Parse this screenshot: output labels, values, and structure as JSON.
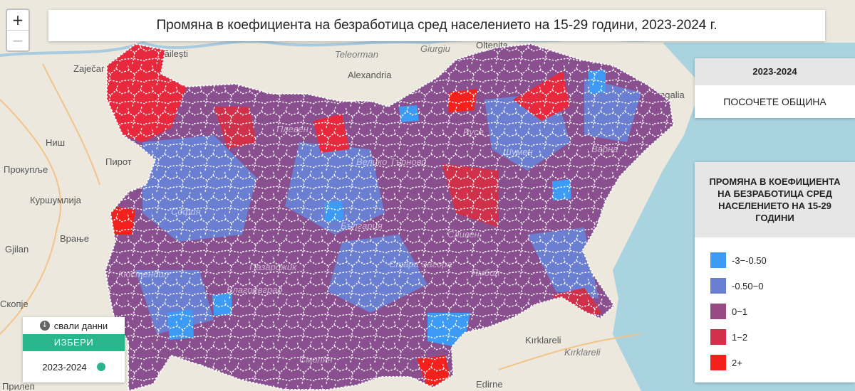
{
  "title": "Промяна в коефициента на безработица сред населението на 15-29 години, 2023-2024 г.",
  "zoom": {
    "in_label": "+",
    "out_label": "−"
  },
  "year_panel": {
    "header": "2023-2024",
    "prompt": "ПОСОЧЕТЕ ОБЩИНА"
  },
  "legend": {
    "title": "ПРОМЯНА В КОЕФИЦИЕНТА НА БЕЗРАБОТИЦА СРЕД НАСЕЛЕНИЕТО НА 15-29 ГОДИНИ",
    "items": [
      {
        "label": "-3−-0.50",
        "color": "#3d9bf5"
      },
      {
        "label": "-0.50−0",
        "color": "#6a7fd1"
      },
      {
        "label": "0−1",
        "color": "#9a4a82"
      },
      {
        "label": "1−2",
        "color": "#d0304a"
      },
      {
        "label": "2+",
        "color": "#f4201c"
      }
    ]
  },
  "selector": {
    "download_label": "свали данни",
    "choose_label": "ИЗБЕРИ",
    "option_label": "2023-2024"
  },
  "places": {
    "baileshti": "Băilești",
    "teleorman": "Teleorman",
    "giurgiu": "Giurgiu",
    "oltenita": "Oltenița",
    "zajecar": "Zaječar",
    "alexandria": "Alexandria",
    "mangalia": "Mangalia",
    "nis": "Ниш",
    "pirot": "Пирот",
    "prokuplje": "Прокупље",
    "kursumlija": "Куршумлија",
    "vranje": "Врање",
    "gjilan": "Gjilan",
    "skopje": "Скопје",
    "prilep": "Прилеп",
    "kirklareli1": "Kırklareli",
    "kirklareli2": "Kırklareli",
    "edirne": "Edirne"
  },
  "map_overlay": {
    "sofia": "София",
    "bulgaria": "България",
    "sliven": "Сливен",
    "stara_zagora": "Стара Загора",
    "yambol": "Ямбол",
    "kyustendil": "Кюстендил",
    "blagoevgrad": "Благоевград",
    "shumen": "Шумен",
    "varna": "Варна",
    "pleven": "Плевен",
    "ruse": "Русе",
    "veliko_tarnovo": "Велико Търново",
    "pazardzhik": "Пазарджик",
    "smolyan": "Смолян"
  },
  "colors": {
    "sea": "#a9d3df",
    "land": "#ece8dd",
    "border": "#ffffff",
    "border_outline": "#4a64c8"
  },
  "region_classes": [
    "0−1",
    "0−1",
    "0−1",
    "-0.50−0",
    "0−1",
    "1−2",
    "0−1",
    "-0.50−0",
    "0−1",
    "-3−-0.50",
    "0−1",
    "2+"
  ]
}
